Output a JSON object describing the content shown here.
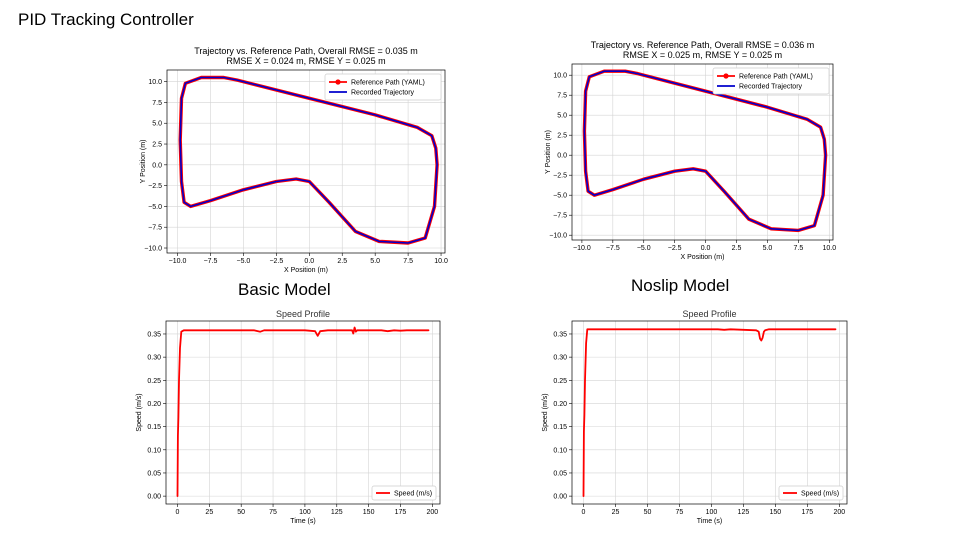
{
  "page": {
    "title": "PID Tracking Controller",
    "captions": {
      "basic": "Basic Model",
      "noslip": "Noslip Model"
    }
  },
  "chart_data": [
    {
      "type": "line",
      "title": "Trajectory vs. Reference Path, Overall RMSE = 0.035 m",
      "subtitle": "RMSE X = 0.024 m, RMSE Y = 0.025 m",
      "xlabel": "X Position (m)",
      "ylabel": "Y Position (m)",
      "xlim": [
        -10.8,
        10.3
      ],
      "ylim": [
        -10.6,
        11.4
      ],
      "xticks": [
        -10.0,
        -7.5,
        -5.0,
        -2.5,
        0.0,
        2.5,
        5.0,
        7.5,
        10.0
      ],
      "xtick_labels": [
        "−10.0",
        "−7.5",
        "−5.0",
        "−2.5",
        "0.0",
        "2.5",
        "5.0",
        "7.5",
        "10.0"
      ],
      "yticks": [
        -10.0,
        -7.5,
        -5.0,
        -2.5,
        0.0,
        2.5,
        5.0,
        7.5,
        10.0
      ],
      "ytick_labels": [
        "−10.0",
        "−7.5",
        "−5.0",
        "−2.5",
        "0.0",
        "2.5",
        "5.0",
        "7.5",
        "10.0"
      ],
      "grid": true,
      "legend": "top-right",
      "series": [
        {
          "name": "Reference Path (YAML)",
          "color": "#ff0000",
          "marker": "o",
          "x": [
            -9.4,
            -8.2,
            -6.5,
            -5.5,
            0,
            5,
            8.2,
            9.3,
            9.6,
            9.7,
            9.5,
            8.8,
            7.5,
            5.3,
            3.5,
            1.5,
            0,
            -1,
            -2.5,
            -5,
            -7.5,
            -9,
            -9.5,
            -9.7,
            -9.8,
            -9.7,
            -9.4
          ],
          "y": [
            9.8,
            10.5,
            10.5,
            10.2,
            8,
            6,
            4.5,
            3.5,
            2,
            0,
            -5,
            -8.8,
            -9.4,
            -9.2,
            -8,
            -4.5,
            -2,
            -1.7,
            -2,
            -3,
            -4.3,
            -5,
            -4.5,
            -2,
            3,
            8,
            9.8
          ]
        },
        {
          "name": "Recorded Trajectory",
          "color": "#0000cc",
          "x": [
            -9.4,
            -8.2,
            -6.5,
            -5.5,
            0,
            5,
            8.2,
            9.3,
            9.6,
            9.7,
            9.5,
            8.8,
            7.5,
            5.3,
            3.5,
            1.5,
            0,
            -1,
            -2.5,
            -5,
            -7.5,
            -9,
            -9.5,
            -9.7,
            -9.8,
            -9.7,
            -9.4
          ],
          "y": [
            9.8,
            10.5,
            10.5,
            10.2,
            8,
            6,
            4.5,
            3.5,
            2,
            0,
            -5,
            -8.8,
            -9.4,
            -9.2,
            -8,
            -4.5,
            -2,
            -1.7,
            -2,
            -3,
            -4.3,
            -5,
            -4.5,
            -2,
            3,
            8,
            9.8
          ]
        }
      ]
    },
    {
      "type": "line",
      "title": "Trajectory vs. Reference Path, Overall RMSE = 0.036 m",
      "subtitle": "RMSE X = 0.025 m, RMSE Y = 0.025 m",
      "xlabel": "X Position (m)",
      "ylabel": "Y Position (m)",
      "xlim": [
        -10.8,
        10.3
      ],
      "ylim": [
        -10.6,
        11.4
      ],
      "xticks": [
        -10.0,
        -7.5,
        -5.0,
        -2.5,
        0.0,
        2.5,
        5.0,
        7.5,
        10.0
      ],
      "xtick_labels": [
        "−10.0",
        "−7.5",
        "−5.0",
        "−2.5",
        "0.0",
        "2.5",
        "5.0",
        "7.5",
        "10.0"
      ],
      "yticks": [
        -10.0,
        -7.5,
        -5.0,
        -2.5,
        0.0,
        2.5,
        5.0,
        7.5,
        10.0
      ],
      "ytick_labels": [
        "−10.0",
        "−7.5",
        "−5.0",
        "−2.5",
        "0.0",
        "2.5",
        "5.0",
        "7.5",
        "10.0"
      ],
      "grid": true,
      "legend": "top-right",
      "series": [
        {
          "name": "Reference Path (YAML)",
          "color": "#ff0000",
          "marker": "o",
          "x": [
            -9.4,
            -8.2,
            -6.5,
            -5.5,
            0,
            5,
            8.2,
            9.3,
            9.6,
            9.7,
            9.5,
            8.8,
            7.5,
            5.3,
            3.5,
            1.5,
            0,
            -1,
            -2.5,
            -5,
            -7.5,
            -9,
            -9.5,
            -9.7,
            -9.8,
            -9.7,
            -9.4
          ],
          "y": [
            9.8,
            10.5,
            10.5,
            10.2,
            8,
            6,
            4.5,
            3.5,
            2,
            0,
            -5,
            -8.8,
            -9.4,
            -9.2,
            -8,
            -4.5,
            -2,
            -1.7,
            -2,
            -3,
            -4.3,
            -5,
            -4.5,
            -2,
            3,
            8,
            9.8
          ]
        },
        {
          "name": "Recorded Trajectory",
          "color": "#0000cc",
          "x": [
            -9.4,
            -8.2,
            -6.5,
            -5.5,
            0,
            5,
            8.2,
            9.3,
            9.6,
            9.7,
            9.5,
            8.8,
            7.5,
            5.3,
            3.5,
            1.5,
            0,
            -1,
            -2.5,
            -5,
            -7.5,
            -9,
            -9.5,
            -9.7,
            -9.8,
            -9.7,
            -9.4
          ],
          "y": [
            9.8,
            10.5,
            10.5,
            10.2,
            8,
            6,
            4.5,
            3.5,
            2,
            0,
            -5,
            -8.8,
            -9.4,
            -9.2,
            -8,
            -4.5,
            -2,
            -1.7,
            -2,
            -3,
            -4.3,
            -5,
            -4.5,
            -2,
            3,
            8,
            9.8
          ]
        }
      ]
    },
    {
      "type": "line",
      "title": "Speed Profile",
      "xlabel": "Time (s)",
      "ylabel": "Speed (m/s)",
      "xlim": [
        -9,
        206
      ],
      "ylim": [
        -0.017,
        0.378
      ],
      "xticks": [
        0,
        25,
        50,
        75,
        100,
        125,
        150,
        175,
        200
      ],
      "xtick_labels": [
        "0",
        "25",
        "50",
        "75",
        "100",
        "125",
        "150",
        "175",
        "200"
      ],
      "yticks": [
        0.0,
        0.05,
        0.1,
        0.15,
        0.2,
        0.25,
        0.3,
        0.35
      ],
      "ytick_labels": [
        "0.00",
        "0.05",
        "0.10",
        "0.15",
        "0.20",
        "0.25",
        "0.30",
        "0.35"
      ],
      "grid": true,
      "legend": "bottom-right",
      "series": [
        {
          "name": "Speed (m/s)",
          "color": "#ff0000",
          "x": [
            0,
            0.3,
            0.7,
            1.2,
            2,
            3,
            5,
            20,
            60,
            65,
            68,
            100,
            108,
            110,
            112,
            118,
            137,
            138,
            139,
            140,
            141,
            160,
            165,
            170,
            175,
            180,
            197
          ],
          "y": [
            0,
            0.13,
            0.17,
            0.25,
            0.32,
            0.355,
            0.358,
            0.358,
            0.358,
            0.355,
            0.358,
            0.358,
            0.356,
            0.346,
            0.356,
            0.358,
            0.358,
            0.351,
            0.364,
            0.355,
            0.358,
            0.358,
            0.356,
            0.358,
            0.357,
            0.358,
            0.358
          ]
        }
      ]
    },
    {
      "type": "line",
      "title": "Speed Profile",
      "xlabel": "Time (s)",
      "ylabel": "Speed (m/s)",
      "xlim": [
        -9,
        206
      ],
      "ylim": [
        -0.017,
        0.378
      ],
      "xticks": [
        0,
        25,
        50,
        75,
        100,
        125,
        150,
        175,
        200
      ],
      "xtick_labels": [
        "0",
        "25",
        "50",
        "75",
        "100",
        "125",
        "150",
        "175",
        "200"
      ],
      "yticks": [
        0.0,
        0.05,
        0.1,
        0.15,
        0.2,
        0.25,
        0.3,
        0.35
      ],
      "ytick_labels": [
        "0.00",
        "0.05",
        "0.10",
        "0.15",
        "0.20",
        "0.25",
        "0.30",
        "0.35"
      ],
      "grid": true,
      "legend": "bottom-right",
      "series": [
        {
          "name": "Speed (m/s)",
          "color": "#ff0000",
          "x": [
            0,
            0.3,
            0.7,
            1.2,
            2,
            3,
            5,
            60,
            105,
            110,
            115,
            125,
            135,
            137,
            138,
            139,
            140,
            141,
            142,
            145,
            160,
            197
          ],
          "y": [
            0,
            0.14,
            0.175,
            0.25,
            0.33,
            0.36,
            0.36,
            0.36,
            0.36,
            0.359,
            0.36,
            0.359,
            0.358,
            0.355,
            0.34,
            0.336,
            0.342,
            0.355,
            0.358,
            0.36,
            0.36,
            0.36
          ]
        }
      ]
    }
  ]
}
